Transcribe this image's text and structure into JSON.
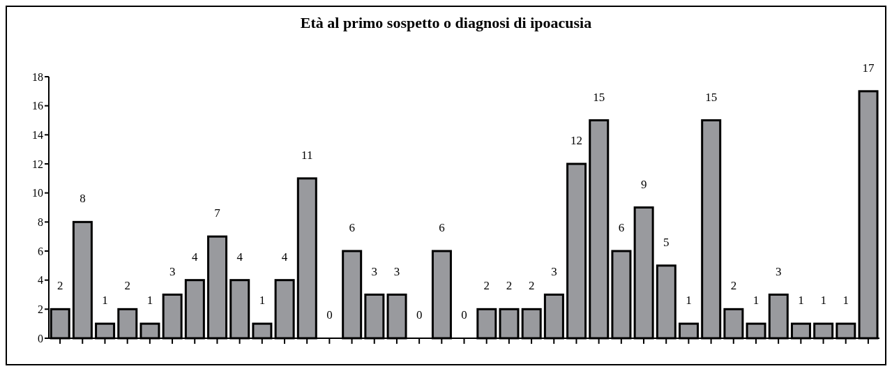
{
  "chart_data": {
    "type": "bar",
    "title": "Età al primo sospetto o diagnosi di ipoacusia",
    "categories": [
      null,
      null,
      null,
      null,
      null,
      null,
      null,
      null,
      null,
      null,
      null,
      null,
      null,
      null,
      null,
      null,
      null,
      null,
      null,
      null,
      null,
      null,
      null,
      null,
      null,
      null,
      null,
      null,
      null,
      null,
      null,
      null,
      null,
      null,
      null,
      null,
      null
    ],
    "values": [
      2,
      8,
      1,
      2,
      1,
      3,
      4,
      7,
      4,
      1,
      4,
      11,
      0,
      6,
      3,
      3,
      0,
      6,
      0,
      2,
      2,
      2,
      3,
      12,
      15,
      6,
      9,
      5,
      1,
      15,
      2,
      1,
      3,
      1,
      1,
      1,
      17
    ],
    "color": "#999a9e",
    "ylim": [
      0,
      18
    ],
    "yticks": [
      0,
      2,
      4,
      6,
      8,
      10,
      12,
      14,
      16,
      18
    ],
    "grid": false,
    "data_labels": true
  }
}
